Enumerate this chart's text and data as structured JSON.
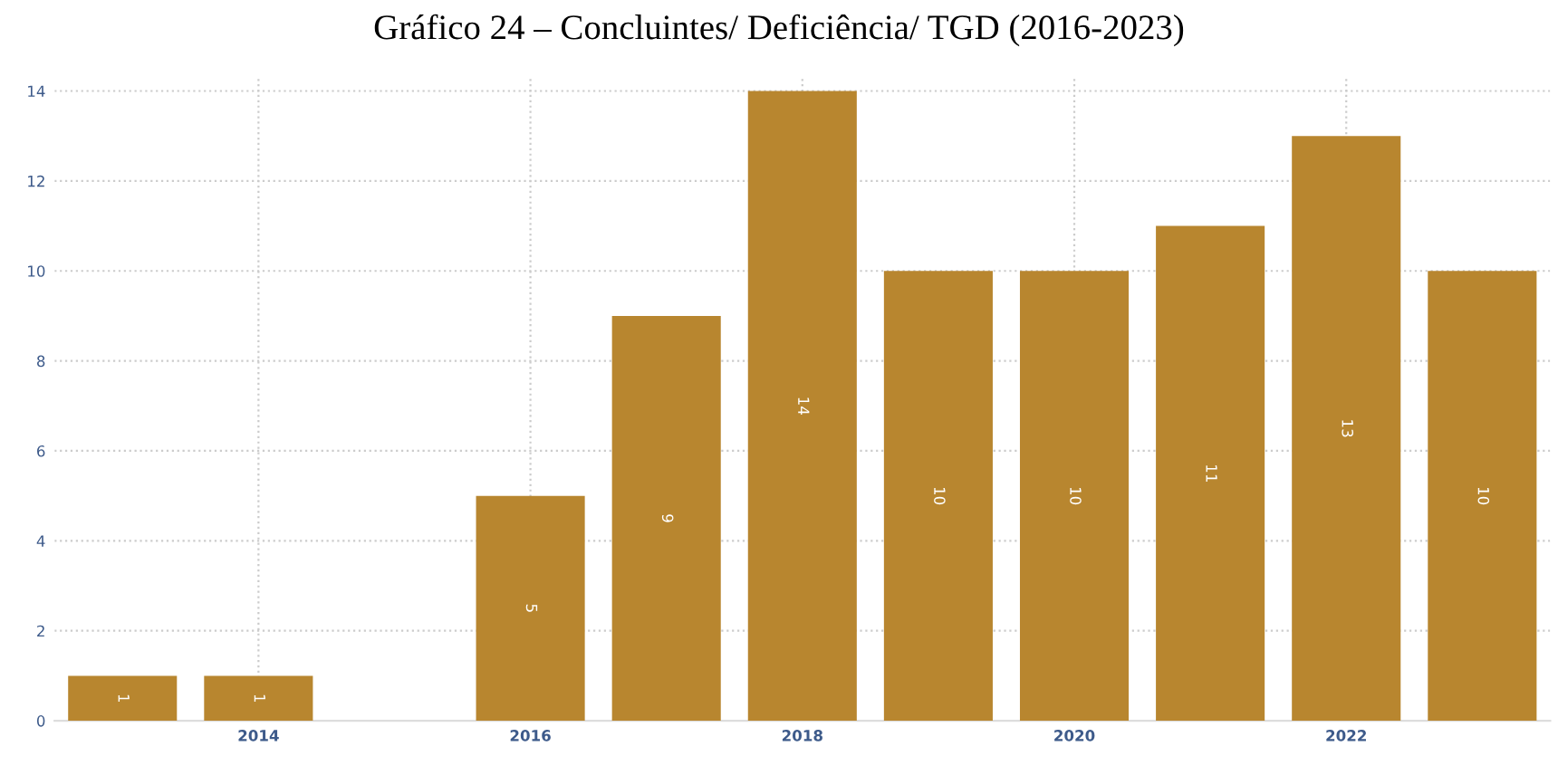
{
  "chart_data": {
    "type": "bar",
    "title": "Gráfico 24 – Concluintes/ Deficiência/ TGD (2016-2023)",
    "categories": [
      null,
      "2014",
      null,
      "2016",
      null,
      "2018",
      null,
      "2020",
      null,
      "2022",
      null
    ],
    "values": [
      1,
      1,
      null,
      5,
      9,
      14,
      10,
      10,
      11,
      13,
      10
    ],
    "color": "#b8862f",
    "ylim": [
      0,
      14.3
    ],
    "yticks": [
      0,
      2,
      4,
      6,
      8,
      10,
      12,
      14
    ],
    "grid": true,
    "data_labels": true
  }
}
